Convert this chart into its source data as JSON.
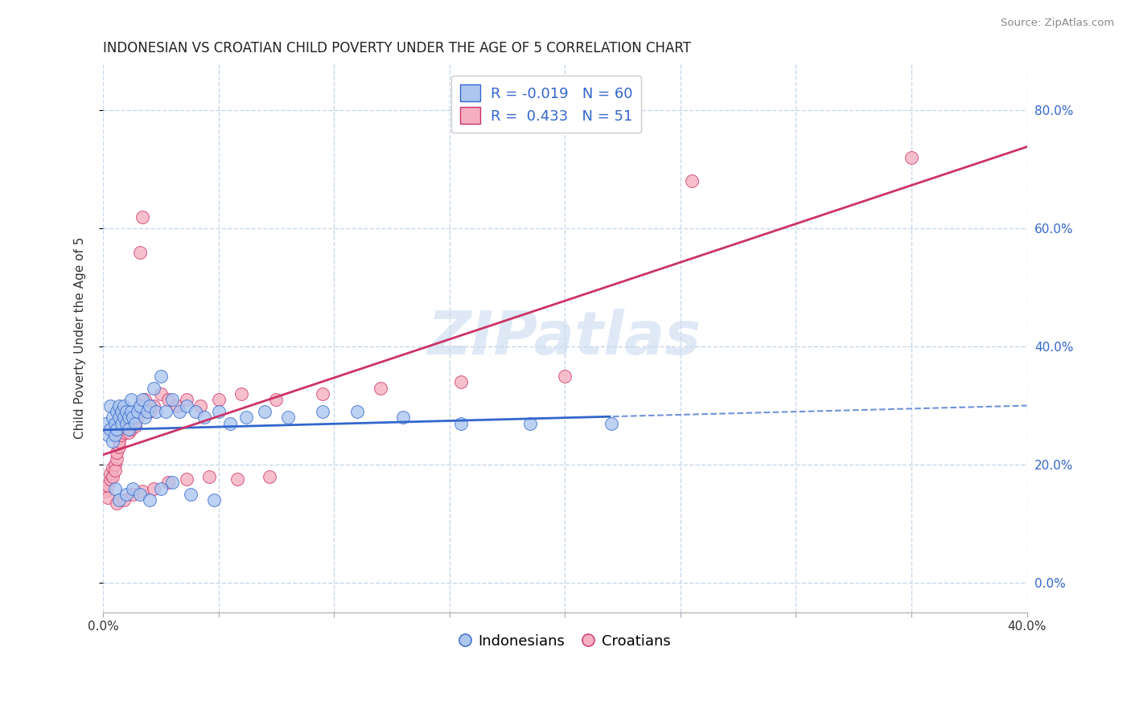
{
  "title": "INDONESIAN VS CROATIAN CHILD POVERTY UNDER THE AGE OF 5 CORRELATION CHART",
  "source": "Source: ZipAtlas.com",
  "ylabel": "Child Poverty Under the Age of 5",
  "xlim": [
    0.0,
    0.4
  ],
  "ylim": [
    -0.05,
    0.88
  ],
  "yticks": [
    0.0,
    0.2,
    0.4,
    0.6,
    0.8
  ],
  "xtick_positions": [
    0.0,
    0.05,
    0.1,
    0.15,
    0.2,
    0.25,
    0.3,
    0.35,
    0.4
  ],
  "legend_r_indonesian": "-0.019",
  "legend_n_indonesian": "60",
  "legend_r_croatian": "0.433",
  "legend_n_croatian": "51",
  "legend_label_indonesian": "Indonesians",
  "legend_label_croatian": "Croatians",
  "indonesian_color": "#adc6ef",
  "croatian_color": "#f5afc0",
  "indonesian_line_color": "#3366cc",
  "croatian_line_color": "#cc3366",
  "background_color": "#ffffff",
  "grid_color": "#c8d8ea",
  "watermark": "ZIPatlas",
  "indonesian_x": [
    0.001,
    0.002,
    0.003,
    0.003,
    0.004,
    0.004,
    0.005,
    0.005,
    0.006,
    0.006,
    0.007,
    0.007,
    0.008,
    0.008,
    0.009,
    0.009,
    0.01,
    0.01,
    0.011,
    0.011,
    0.012,
    0.012,
    0.013,
    0.014,
    0.015,
    0.016,
    0.017,
    0.018,
    0.019,
    0.02,
    0.022,
    0.023,
    0.025,
    0.027,
    0.03,
    0.033,
    0.036,
    0.04,
    0.044,
    0.05,
    0.055,
    0.062,
    0.07,
    0.08,
    0.095,
    0.11,
    0.13,
    0.155,
    0.185,
    0.22,
    0.005,
    0.007,
    0.01,
    0.013,
    0.016,
    0.02,
    0.025,
    0.03,
    0.038,
    0.048
  ],
  "indonesian_y": [
    0.27,
    0.25,
    0.3,
    0.26,
    0.28,
    0.24,
    0.27,
    0.25,
    0.29,
    0.26,
    0.28,
    0.3,
    0.29,
    0.27,
    0.28,
    0.3,
    0.29,
    0.27,
    0.28,
    0.26,
    0.29,
    0.31,
    0.28,
    0.27,
    0.29,
    0.3,
    0.31,
    0.28,
    0.29,
    0.3,
    0.33,
    0.29,
    0.35,
    0.29,
    0.31,
    0.29,
    0.3,
    0.29,
    0.28,
    0.29,
    0.27,
    0.28,
    0.29,
    0.28,
    0.29,
    0.29,
    0.28,
    0.27,
    0.27,
    0.27,
    0.16,
    0.14,
    0.15,
    0.16,
    0.15,
    0.14,
    0.16,
    0.17,
    0.15,
    0.14
  ],
  "croatian_x": [
    0.001,
    0.002,
    0.002,
    0.003,
    0.003,
    0.004,
    0.004,
    0.005,
    0.005,
    0.006,
    0.006,
    0.007,
    0.007,
    0.008,
    0.008,
    0.009,
    0.01,
    0.011,
    0.012,
    0.013,
    0.014,
    0.015,
    0.016,
    0.017,
    0.018,
    0.02,
    0.022,
    0.025,
    0.028,
    0.032,
    0.036,
    0.042,
    0.05,
    0.06,
    0.075,
    0.095,
    0.12,
    0.155,
    0.2,
    0.255,
    0.006,
    0.009,
    0.013,
    0.017,
    0.022,
    0.028,
    0.036,
    0.046,
    0.058,
    0.072,
    0.35
  ],
  "croatian_y": [
    0.155,
    0.145,
    0.165,
    0.175,
    0.185,
    0.195,
    0.18,
    0.2,
    0.19,
    0.21,
    0.22,
    0.23,
    0.24,
    0.25,
    0.26,
    0.255,
    0.265,
    0.255,
    0.26,
    0.27,
    0.265,
    0.28,
    0.56,
    0.62,
    0.31,
    0.29,
    0.3,
    0.32,
    0.31,
    0.3,
    0.31,
    0.3,
    0.31,
    0.32,
    0.31,
    0.32,
    0.33,
    0.34,
    0.35,
    0.68,
    0.135,
    0.14,
    0.15,
    0.155,
    0.16,
    0.17,
    0.175,
    0.18,
    0.175,
    0.18,
    0.72
  ],
  "title_fontsize": 12,
  "axis_label_fontsize": 11,
  "tick_fontsize": 11,
  "legend_fontsize": 13
}
